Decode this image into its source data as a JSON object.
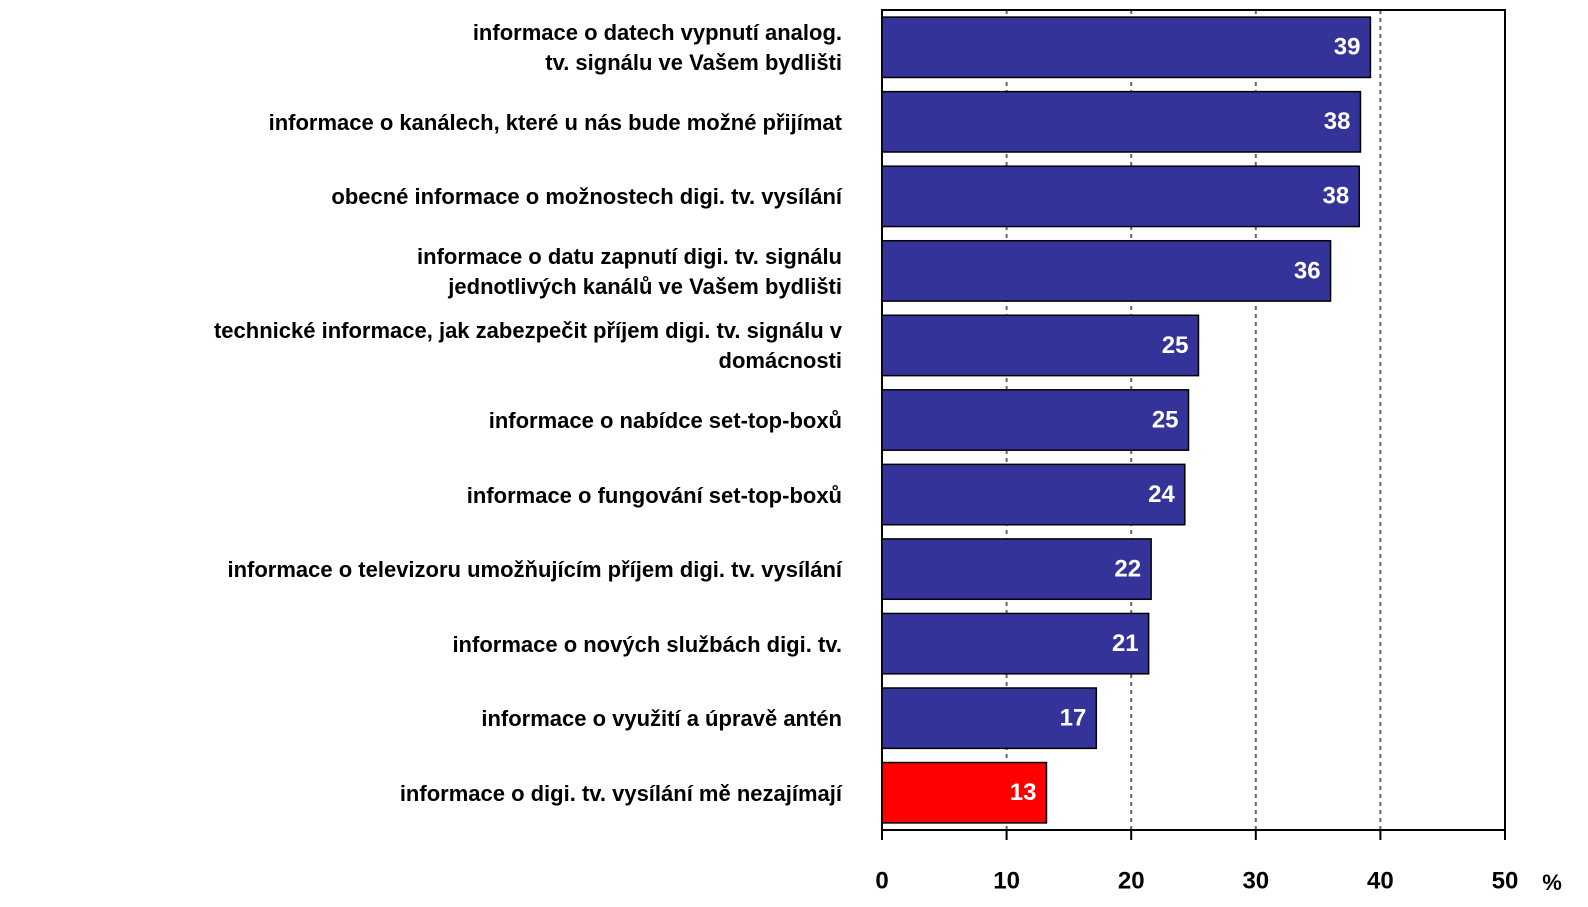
{
  "chart_data": {
    "type": "barh",
    "categories": [
      "informace o datech vypnutí analog.\ntv. signálu ve Vašem bydlišti",
      "informace o kanálech, které u nás bude možné přijímat",
      "obecné informace o možnostech digi.  tv. vysílání",
      "informace o datu zapnutí digi.  tv.  signálu\njednotlivých kanálů ve Vašem bydlišti",
      "technické informace, jak zabezpečit příjem digi.  tv. signálu v\ndomácnosti",
      "informace o nabídce set-top-boxů",
      "informace o fungování set-top-boxů",
      "informace o televizoru umožňujícím příjem digi.  tv. vysílání",
      "informace o nových službách digi. tv.",
      "informace o využití a úpravě antén",
      "informace o digi. tv. vysílání mě nezajímají"
    ],
    "values": [
      39.2,
      38.4,
      38.3,
      36.0,
      25.4,
      24.6,
      24.3,
      21.6,
      21.4,
      17.2,
      13.2
    ],
    "value_labels": [
      "39",
      "38",
      "38",
      "36",
      "25",
      "25",
      "24",
      "22",
      "21",
      "17",
      "13"
    ],
    "colors": [
      "#333399",
      "#333399",
      "#333399",
      "#333399",
      "#333399",
      "#333399",
      "#333399",
      "#333399",
      "#333399",
      "#333399",
      "#ff0000"
    ],
    "xlim": [
      0,
      50
    ],
    "xticks": [
      0,
      10,
      20,
      30,
      40,
      50
    ],
    "xlabel": "%",
    "grid": true
  }
}
